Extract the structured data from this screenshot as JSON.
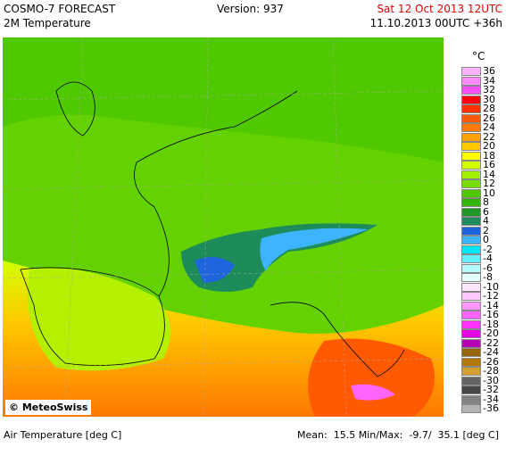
{
  "header": {
    "product": "COSMO-7 FORECAST",
    "field": "2M Temperature",
    "version": "Version: 937",
    "valid_time": "Sat 12 Oct 2013 12UTC",
    "run_time": "11.10.2013 00UTC +36h"
  },
  "map": {
    "copyright": "© MeteoSwiss"
  },
  "legend": {
    "unit": "°C",
    "items": [
      {
        "label": "36",
        "color": "#ffb4ff"
      },
      {
        "label": "34",
        "color": "#ff8cff"
      },
      {
        "label": "32",
        "color": "#ff50ff"
      },
      {
        "label": "30",
        "color": "#ff0000"
      },
      {
        "label": "28",
        "color": "#ff3200"
      },
      {
        "label": "26",
        "color": "#ff5a00"
      },
      {
        "label": "24",
        "color": "#ff7800"
      },
      {
        "label": "22",
        "color": "#ffa000"
      },
      {
        "label": "20",
        "color": "#ffc800"
      },
      {
        "label": "18",
        "color": "#ffff00"
      },
      {
        "label": "16",
        "color": "#d2ff00"
      },
      {
        "label": "14",
        "color": "#a0f000"
      },
      {
        "label": "12",
        "color": "#78dc00"
      },
      {
        "label": "10",
        "color": "#50c800"
      },
      {
        "label": "8",
        "color": "#32b400"
      },
      {
        "label": "6",
        "color": "#1e9628"
      },
      {
        "label": "4",
        "color": "#1e8c5a"
      },
      {
        "label": "2",
        "color": "#1e64dc"
      },
      {
        "label": "0",
        "color": "#3cb4ff"
      },
      {
        "label": "-2",
        "color": "#00e6ff"
      },
      {
        "label": "-4",
        "color": "#64f0ff"
      },
      {
        "label": "-6",
        "color": "#b4faff"
      },
      {
        "label": "-8",
        "color": "#e6ffff"
      },
      {
        "label": "-10",
        "color": "#ffe6ff"
      },
      {
        "label": "-12",
        "color": "#ffc8ff"
      },
      {
        "label": "-14",
        "color": "#ff96ff"
      },
      {
        "label": "-16",
        "color": "#ff64ff"
      },
      {
        "label": "-18",
        "color": "#ff32ff"
      },
      {
        "label": "-20",
        "color": "#e600e6"
      },
      {
        "label": "-22",
        "color": "#b400b4"
      },
      {
        "label": "-24",
        "color": "#966400"
      },
      {
        "label": "-26",
        "color": "#b47800"
      },
      {
        "label": "-28",
        "color": "#d2a032"
      },
      {
        "label": "-30",
        "color": "#646464"
      },
      {
        "label": "-32",
        "color": "#464646"
      },
      {
        "label": "-34",
        "color": "#828282"
      },
      {
        "label": "-36",
        "color": "#b4b4b4"
      }
    ]
  },
  "footer": {
    "left": "Air Temperature [deg C]",
    "right": "Mean:  15.5 Min/Max:  -9.7/  35.1 [deg C]"
  }
}
